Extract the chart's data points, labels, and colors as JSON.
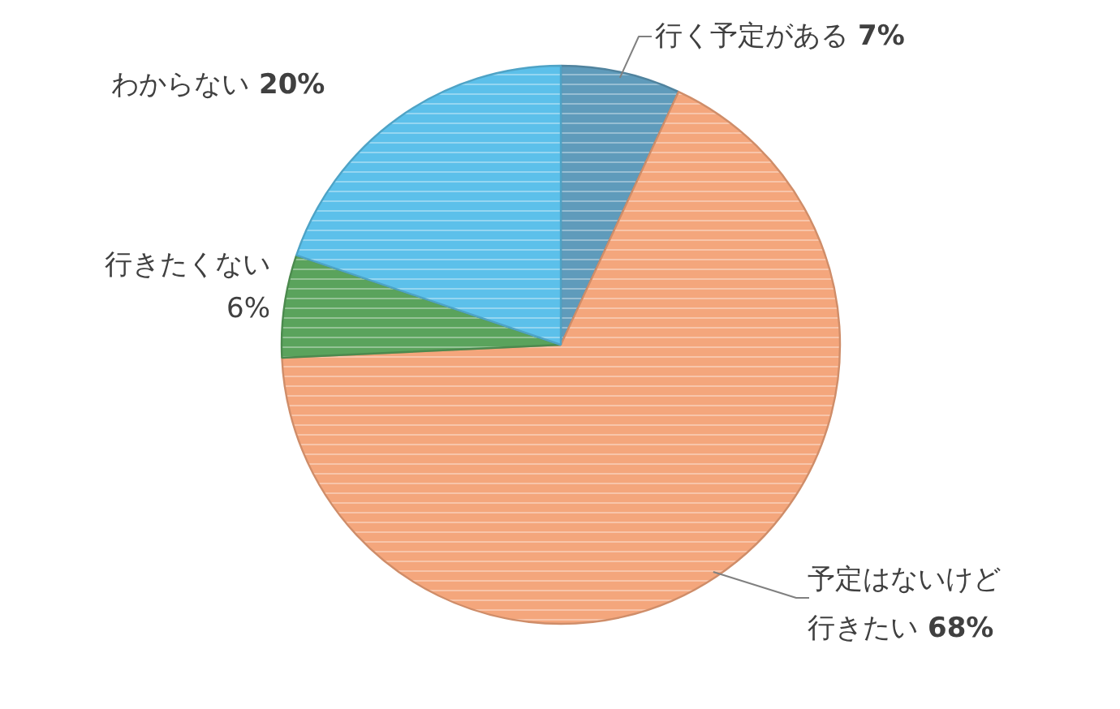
{
  "chart_data": {
    "type": "pie",
    "categories": [
      "行く予定がある",
      "予定はないけど行きたい",
      "行きたくない",
      "わからない"
    ],
    "values": [
      7,
      68,
      6,
      20
    ],
    "value_labels": [
      "7%",
      "68%",
      "6%",
      "20%"
    ],
    "colors": [
      "#5f9bbb",
      "#f4a67c",
      "#5aa35c",
      "#5cc0ea"
    ]
  }
}
